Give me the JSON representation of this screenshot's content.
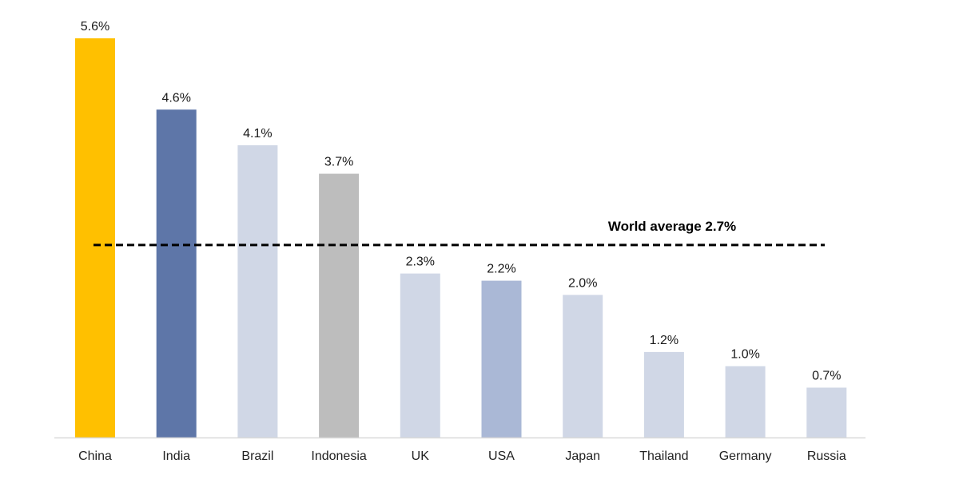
{
  "chart_data": {
    "type": "bar",
    "title": "",
    "xlabel": "",
    "ylabel": "",
    "ylim": [
      0,
      5.6
    ],
    "grid": false,
    "legend": "none",
    "categories": [
      "China",
      "India",
      "Brazil",
      "Indonesia",
      "UK",
      "USA",
      "Japan",
      "Thailand",
      "Germany",
      "Russia"
    ],
    "values": [
      5.6,
      4.6,
      4.1,
      3.7,
      2.3,
      2.2,
      2.0,
      1.2,
      1.0,
      0.7
    ],
    "value_labels": [
      "5.6%",
      "4.6%",
      "4.1%",
      "3.7%",
      "2.3%",
      "2.2%",
      "2.0%",
      "1.2%",
      "1.0%",
      "0.7%"
    ],
    "bar_colors": [
      "#FFC000",
      "#5E76A8",
      "#D0D7E6",
      "#BDBDBD",
      "#D0D7E6",
      "#AAB8D6",
      "#D0D7E6",
      "#D0D7E6",
      "#D0D7E6",
      "#D0D7E6"
    ],
    "reference_line": {
      "value": 2.7,
      "label": "World average 2.7%",
      "style": "dashed",
      "color": "#000000"
    },
    "axis_color": "#D9D9D9"
  }
}
